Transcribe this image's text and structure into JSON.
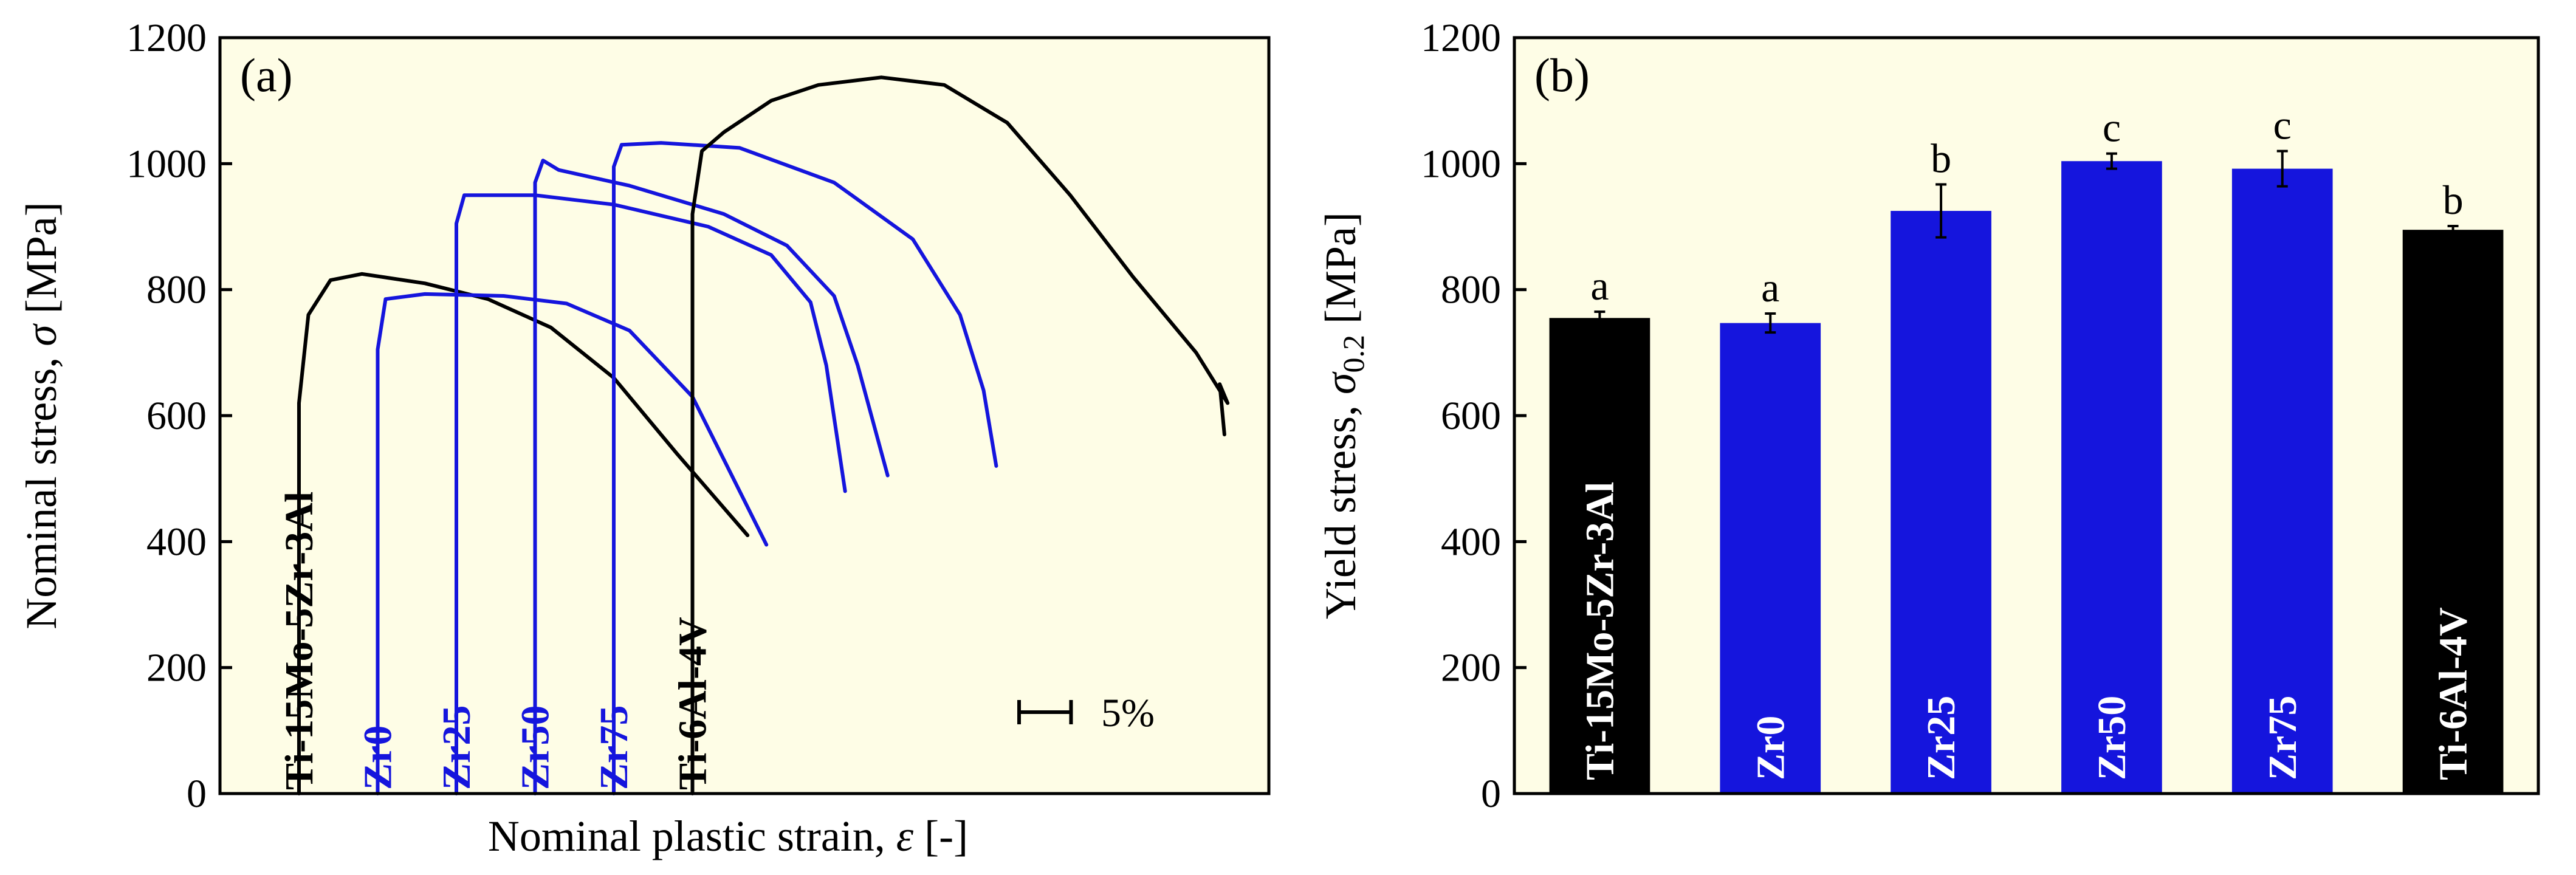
{
  "chart_data": [
    {
      "panel": "(a)",
      "type": "line",
      "ylabel_text": "Nominal stress, ",
      "ylabel_symbol": "σ",
      "ylabel_unit": " [MPa]",
      "xlabel_text": "Nominal plastic strain, ",
      "xlabel_symbol": "ε",
      "xlabel_unit": " [-]",
      "ylim": [
        0,
        1200
      ],
      "yticks": [
        "0",
        "200",
        "400",
        "600",
        "800",
        "1000",
        "1200"
      ],
      "scale_bar_label": "5%",
      "scale_bar_strain_percent": 5,
      "x_unit_note": "each curve starts at its own offset origin; x in % plastic strain",
      "series": [
        {
          "name": "Ti-15Mo-5Zr-3Al",
          "color": "#000000",
          "x_offset": 0,
          "points": [
            [
              0,
              0
            ],
            [
              0,
              620
            ],
            [
              0.6,
              760
            ],
            [
              2,
              815
            ],
            [
              4,
              825
            ],
            [
              8,
              810
            ],
            [
              12,
              785
            ],
            [
              16,
              740
            ],
            [
              20,
              660
            ],
            [
              24,
              540
            ],
            [
              28.5,
              410
            ]
          ]
        },
        {
          "name": "Zr0",
          "color": "#1515dd",
          "x_offset": 5,
          "points": [
            [
              0,
              0
            ],
            [
              0,
              705
            ],
            [
              0.5,
              785
            ],
            [
              3,
              793
            ],
            [
              8,
              790
            ],
            [
              12,
              778
            ],
            [
              16,
              735
            ],
            [
              20,
              630
            ],
            [
              24.7,
              395
            ]
          ]
        },
        {
          "name": "Zr25",
          "color": "#1515dd",
          "x_offset": 10,
          "points": [
            [
              0,
              0
            ],
            [
              0,
              905
            ],
            [
              0.5,
              950
            ],
            [
              5,
              950
            ],
            [
              10,
              935
            ],
            [
              16,
              900
            ],
            [
              20,
              855
            ],
            [
              22.5,
              780
            ],
            [
              23.5,
              680
            ],
            [
              24.7,
              480
            ]
          ]
        },
        {
          "name": "Zr50",
          "color": "#1515dd",
          "x_offset": 15,
          "points": [
            [
              0,
              0
            ],
            [
              0,
              970
            ],
            [
              0.5,
              1005
            ],
            [
              1.5,
              990
            ],
            [
              6,
              965
            ],
            [
              12,
              920
            ],
            [
              16,
              870
            ],
            [
              19,
              790
            ],
            [
              20.5,
              680
            ],
            [
              22.4,
              505
            ]
          ]
        },
        {
          "name": "Zr75",
          "color": "#1515dd",
          "x_offset": 20,
          "points": [
            [
              0,
              0
            ],
            [
              0,
              995
            ],
            [
              0.5,
              1030
            ],
            [
              3,
              1033
            ],
            [
              8,
              1025
            ],
            [
              14,
              970
            ],
            [
              19,
              880
            ],
            [
              22,
              760
            ],
            [
              23.5,
              640
            ],
            [
              24.3,
              520
            ]
          ]
        },
        {
          "name": "Ti-6Al-4V",
          "color": "#000000",
          "x_offset": 25,
          "points": [
            [
              0,
              0
            ],
            [
              0,
              920
            ],
            [
              0.6,
              1020
            ],
            [
              2,
              1050
            ],
            [
              5,
              1100
            ],
            [
              8,
              1125
            ],
            [
              12,
              1137
            ],
            [
              16,
              1125
            ],
            [
              20,
              1065
            ],
            [
              24,
              950
            ],
            [
              28,
              820
            ],
            [
              32,
              700
            ],
            [
              34,
              620
            ],
            [
              33.5,
              650
            ],
            [
              33.8,
              570
            ]
          ]
        }
      ]
    },
    {
      "panel": "(b)",
      "type": "bar",
      "ylabel_text": "Yield stress, ",
      "ylabel_symbol": "σ",
      "ylabel_sub": "0.2",
      "ylabel_unit": " [MPa]",
      "ylim": [
        0,
        1200
      ],
      "yticks": [
        "0",
        "200",
        "400",
        "600",
        "800",
        "1000",
        "1200"
      ],
      "categories": [
        "Ti-15Mo-5Zr-3Al",
        "Zr0",
        "Zr25",
        "Zr50",
        "Zr75",
        "Ti-6Al-4V"
      ],
      "values": [
        755,
        747,
        925,
        1004,
        992,
        895
      ],
      "errors": [
        10,
        15,
        42,
        12,
        28,
        6
      ],
      "significance": [
        "a",
        "a",
        "b",
        "c",
        "c",
        "b"
      ],
      "colors": [
        "#000000",
        "#1515dd",
        "#1515dd",
        "#1515dd",
        "#1515dd",
        "#000000"
      ]
    }
  ]
}
